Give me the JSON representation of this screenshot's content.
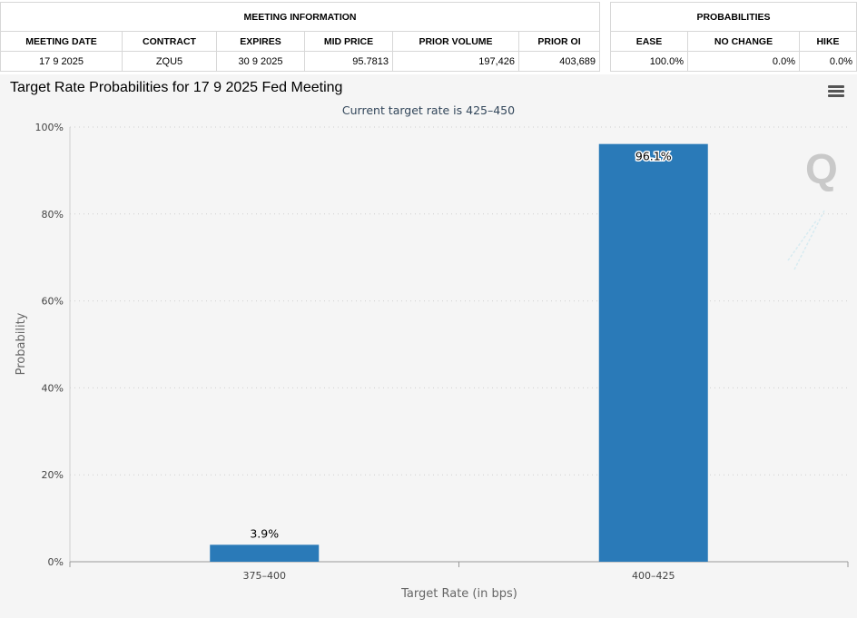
{
  "meeting_info": {
    "heading": "MEETING INFORMATION",
    "columns": [
      "MEETING DATE",
      "CONTRACT",
      "EXPIRES",
      "MID PRICE",
      "PRIOR VOLUME",
      "PRIOR OI"
    ],
    "row": [
      "17 9 2025",
      "ZQU5",
      "30 9 2025",
      "95.7813",
      "197,426",
      "403,689"
    ]
  },
  "probabilities": {
    "heading": "PROBABILITIES",
    "columns": [
      "EASE",
      "NO CHANGE",
      "HIKE"
    ],
    "row": [
      "100.0%",
      "0.0%",
      "0.0%"
    ]
  },
  "chart_data": {
    "type": "bar",
    "title": "Target Rate Probabilities for 17 9 2025 Fed Meeting",
    "subtitle": "Current target rate is 425–450",
    "categories": [
      "375–400",
      "400–425"
    ],
    "values": [
      3.9,
      96.1
    ],
    "data_labels": [
      "3.9%",
      "96.1%"
    ],
    "xlabel": "Target Rate (in bps)",
    "ylabel": "Probability",
    "ylim": [
      0,
      100
    ],
    "y_ticks": [
      "0%",
      "20%",
      "40%",
      "60%",
      "80%",
      "100%"
    ],
    "y_tick_values": [
      0,
      20,
      40,
      60,
      80,
      100
    ],
    "bar_color": "#2a7ab8",
    "grid": true,
    "legend": "none"
  },
  "icons": {
    "menu": "hamburger-menu-icon",
    "logo": "q-logo-watermark"
  }
}
